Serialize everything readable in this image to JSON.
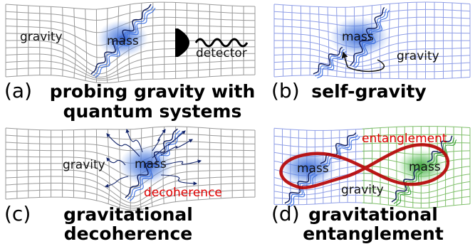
{
  "panels": [
    {
      "id": "a",
      "letter": "(a)",
      "caption_line1": "probing gravity with",
      "caption_line2": "quantum systems",
      "labels": {
        "gravity": "gravity",
        "mass": "mass",
        "detector": "detector"
      },
      "grid_color": "#9a9a9a",
      "blob_color": "#2f5fd0"
    },
    {
      "id": "b",
      "letter": "(b)",
      "caption_line1": "self-gravity",
      "labels": {
        "gravity": "gravity",
        "mass": "mass"
      },
      "grid_color": "#8f9ee6",
      "blob_color": "#2f5fd0"
    },
    {
      "id": "c",
      "letter": "(c)",
      "caption_line1": "gravitational",
      "caption_line2": "decoherence",
      "labels": {
        "gravity": "gravity",
        "mass": "mass",
        "decoherence": "decoherence"
      },
      "grid_color": "#9a9a9a",
      "blob_color": "#2f5fd0",
      "accent_color": "#e00000"
    },
    {
      "id": "d",
      "letter": "(d)",
      "caption_line1": "gravitational",
      "caption_line2": "entanglement",
      "labels": {
        "gravity": "gravity",
        "mass_left": "mass",
        "mass_right": "mass",
        "entanglement": "entanglement"
      },
      "grid_left_color": "#8f9ee6",
      "grid_right_color": "#7fbf6a",
      "blob_left_color": "#2f5fd0",
      "blob_right_color": "#2f9a2f",
      "accent_color": "#c00000"
    }
  ]
}
